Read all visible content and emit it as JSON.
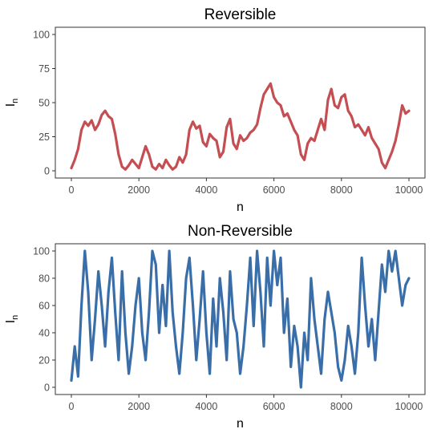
{
  "chart_data": [
    {
      "type": "line",
      "title": "Reversible",
      "xlabel": "n",
      "ylabel": "I",
      "ylabel_subscript": "n",
      "xlim": [
        0,
        10000
      ],
      "ylim": [
        0,
        100
      ],
      "xticks": [
        0,
        2000,
        4000,
        6000,
        8000,
        10000
      ],
      "yticks": [
        0,
        25,
        50,
        75,
        100
      ],
      "grid": false,
      "color": "#c44e52",
      "series": [
        {
          "x": [
            0,
            100,
            200,
            300,
            400,
            500,
            600,
            700,
            800,
            900,
            1000,
            1100,
            1200,
            1300,
            1400,
            1500,
            1600,
            1700,
            1800,
            1900,
            2000,
            2100,
            2200,
            2300,
            2400,
            2500,
            2600,
            2700,
            2800,
            2900,
            3000,
            3100,
            3200,
            3300,
            3400,
            3500,
            3600,
            3700,
            3800,
            3900,
            4000,
            4100,
            4200,
            4300,
            4400,
            4500,
            4600,
            4700,
            4800,
            4900,
            5000,
            5100,
            5200,
            5300,
            5400,
            5500,
            5600,
            5700,
            5800,
            5900,
            6000,
            6100,
            6200,
            6300,
            6400,
            6500,
            6600,
            6700,
            6800,
            6900,
            7000,
            7100,
            7200,
            7300,
            7400,
            7500,
            7600,
            7700,
            7800,
            7900,
            8000,
            8100,
            8200,
            8300,
            8400,
            8500,
            8600,
            8700,
            8800,
            8900,
            9000,
            9100,
            9200,
            9300,
            9400,
            9500,
            9600,
            9700,
            9800,
            9900,
            10000
          ],
          "y": [
            2,
            8,
            16,
            30,
            36,
            33,
            37,
            30,
            34,
            41,
            44,
            40,
            38,
            27,
            12,
            3,
            1,
            4,
            8,
            5,
            2,
            10,
            18,
            12,
            3,
            1,
            5,
            2,
            8,
            4,
            1,
            3,
            10,
            6,
            12,
            30,
            36,
            31,
            33,
            21,
            18,
            27,
            24,
            22,
            10,
            14,
            32,
            38,
            20,
            16,
            26,
            22,
            24,
            28,
            30,
            34,
            46,
            56,
            60,
            64,
            54,
            50,
            48,
            40,
            42,
            36,
            30,
            26,
            12,
            8,
            20,
            24,
            22,
            30,
            38,
            30,
            52,
            60,
            48,
            46,
            54,
            56,
            44,
            40,
            32,
            34,
            30,
            26,
            32,
            24,
            20,
            16,
            6,
            2,
            8,
            14,
            22,
            34,
            48,
            42,
            44
          ]
        }
      ]
    },
    {
      "type": "line",
      "title": "Non-Reversible",
      "xlabel": "n",
      "ylabel": "I",
      "ylabel_subscript": "n",
      "xlim": [
        0,
        10000
      ],
      "ylim": [
        0,
        100
      ],
      "xticks": [
        0,
        2000,
        4000,
        6000,
        8000,
        10000
      ],
      "yticks": [
        0,
        20,
        40,
        60,
        80,
        100
      ],
      "grid": false,
      "color": "#3a6ea8",
      "series": [
        {
          "x": [
            0,
            100,
            200,
            300,
            400,
            500,
            600,
            700,
            800,
            900,
            1000,
            1100,
            1200,
            1300,
            1400,
            1500,
            1600,
            1700,
            1800,
            1900,
            2000,
            2100,
            2200,
            2300,
            2400,
            2500,
            2600,
            2700,
            2800,
            2900,
            3000,
            3100,
            3200,
            3300,
            3400,
            3500,
            3600,
            3700,
            3800,
            3900,
            4000,
            4100,
            4200,
            4300,
            4400,
            4500,
            4600,
            4700,
            4800,
            4900,
            5000,
            5100,
            5200,
            5300,
            5400,
            5500,
            5600,
            5700,
            5800,
            5900,
            6000,
            6100,
            6200,
            6300,
            6400,
            6500,
            6600,
            6700,
            6800,
            6900,
            7000,
            7100,
            7200,
            7300,
            7400,
            7500,
            7600,
            7700,
            7800,
            7900,
            8000,
            8100,
            8200,
            8300,
            8400,
            8500,
            8600,
            8700,
            8800,
            8900,
            9000,
            9100,
            9200,
            9300,
            9400,
            9500,
            9600,
            9700,
            9800,
            9900,
            10000
          ],
          "y": [
            5,
            30,
            8,
            60,
            100,
            70,
            20,
            50,
            85,
            60,
            30,
            70,
            95,
            55,
            20,
            85,
            40,
            10,
            30,
            60,
            80,
            40,
            20,
            55,
            100,
            90,
            40,
            75,
            45,
            100,
            55,
            30,
            10,
            40,
            80,
            95,
            60,
            20,
            50,
            85,
            40,
            10,
            65,
            30,
            80,
            55,
            20,
            85,
            50,
            40,
            10,
            30,
            60,
            95,
            45,
            100,
            70,
            30,
            95,
            60,
            100,
            75,
            95,
            40,
            65,
            15,
            45,
            30,
            0,
            40,
            20,
            80,
            50,
            30,
            10,
            50,
            70,
            55,
            40,
            15,
            5,
            20,
            45,
            30,
            10,
            40,
            95,
            60,
            30,
            50,
            20,
            55,
            90,
            70,
            100,
            85,
            100,
            80,
            60,
            75,
            80
          ]
        }
      ]
    }
  ]
}
